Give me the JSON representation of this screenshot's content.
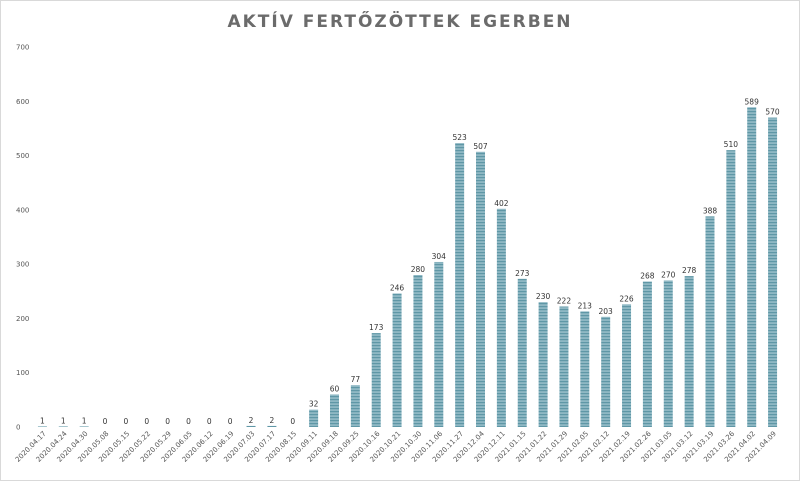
{
  "chart_data": {
    "type": "bar",
    "title": "AKTÍV FERTŐZÖTTEK EGERBEN",
    "xlabel": "",
    "ylabel": "",
    "ylim": [
      0,
      700
    ],
    "yticks": [
      0,
      100,
      200,
      300,
      400,
      500,
      600,
      700
    ],
    "grid": false,
    "bar_color": "#8fb8c4",
    "bar_stripe_color": "#5f97a6",
    "categories": [
      "2020.04.17",
      "2020.04.24",
      "2020.04.30",
      "2020.05.08",
      "2020.05.15",
      "2020.05.22",
      "2020.05.29",
      "2020.06.05",
      "2020.06.12",
      "2020.06.19",
      "2020.07.03",
      "2020.07.17",
      "2020.08.15",
      "2020.09.11",
      "2020.09.18",
      "2020.09.25",
      "2020.10.16",
      "2020.10.21",
      "2020.10.30",
      "2020.11.06",
      "2020.11.27",
      "2020.12.04",
      "2020.12.11",
      "2021.01.15",
      "2021.01.22",
      "2021.01.29",
      "2021.02.05",
      "2021.02.12",
      "2021.02.19",
      "2021.02.26",
      "2021.03.05",
      "2021.03.12",
      "2021.03.19",
      "2021.03.26",
      "2021.04.02",
      "2021.04.09"
    ],
    "values": [
      1,
      1,
      1,
      0,
      0,
      0,
      0,
      0,
      0,
      0,
      2,
      2,
      0,
      32,
      60,
      77,
      173,
      246,
      280,
      304,
      523,
      507,
      402,
      273,
      230,
      222,
      213,
      203,
      226,
      268,
      270,
      278,
      388,
      510,
      589,
      570
    ]
  }
}
